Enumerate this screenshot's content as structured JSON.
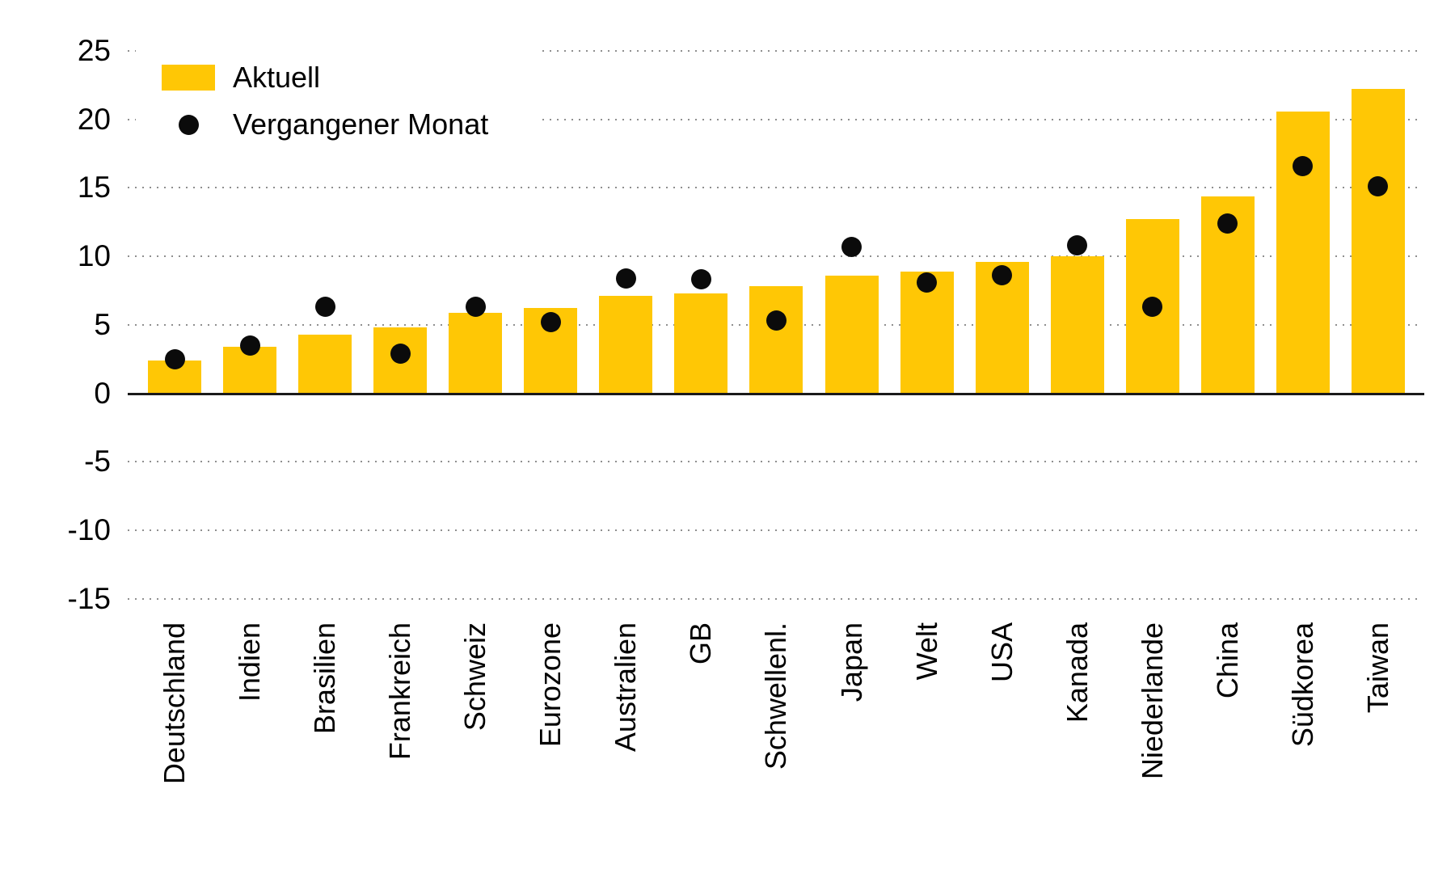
{
  "chart_data": {
    "type": "bar",
    "title": "",
    "categories": [
      "Deutschland",
      "Indien",
      "Brasilien",
      "Frankreich",
      "Schweiz",
      "Eurozone",
      "Australien",
      "GB",
      "Schwellenl.",
      "Japan",
      "Welt",
      "USA",
      "Kanada",
      "Niederlande",
      "China",
      "Südkorea",
      "Taiwan"
    ],
    "series": [
      {
        "name": "Aktuell",
        "type": "bar",
        "color": "#ffc705",
        "values": [
          2.4,
          3.4,
          4.3,
          4.8,
          5.9,
          6.2,
          7.1,
          7.3,
          7.8,
          8.6,
          8.9,
          9.6,
          10.0,
          12.7,
          14.4,
          20.6,
          22.2
        ]
      },
      {
        "name": "Vergangener Monat",
        "type": "scatter",
        "color": "#0b0b0b",
        "values": [
          2.5,
          3.5,
          6.3,
          2.9,
          6.3,
          5.2,
          8.4,
          8.3,
          5.3,
          10.7,
          8.1,
          8.6,
          10.8,
          6.3,
          12.4,
          16.6,
          15.1
        ]
      }
    ],
    "y_ticks": [
      25,
      20,
      15,
      10,
      5,
      0,
      -5,
      -10,
      -15
    ],
    "ylim": [
      -17,
      26
    ],
    "xlabel": "",
    "ylabel": "",
    "grid": "horizontal-dotted",
    "legend_position": "top-left",
    "colors": {
      "bar": "#ffc705",
      "dot": "#0b0b0b",
      "gridline": "#8f8f8f",
      "axis_line": "#1a1a1a",
      "text": "#000000",
      "background": "#ffffff"
    }
  }
}
